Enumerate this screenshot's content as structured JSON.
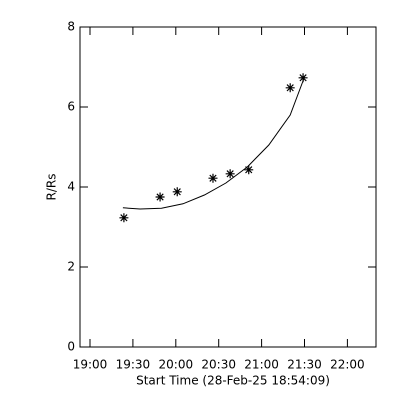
{
  "chart_data": {
    "type": "scatter",
    "xlabel": "Start Time (28-Feb-25 18:54:09)",
    "ylabel": "R/Rs",
    "xlim": [
      1133,
      1340
    ],
    "ylim": [
      0,
      8
    ],
    "xticks": [
      {
        "value": 1140,
        "label": "19:00"
      },
      {
        "value": 1170,
        "label": "19:30"
      },
      {
        "value": 1200,
        "label": "20:00"
      },
      {
        "value": 1230,
        "label": "20:30"
      },
      {
        "value": 1260,
        "label": "21:00"
      },
      {
        "value": 1290,
        "label": "21:30"
      },
      {
        "value": 1320,
        "label": "22:00"
      }
    ],
    "yticks": [
      0,
      2,
      4,
      6,
      8
    ],
    "color": "#000000",
    "x": [
      1163.7,
      1189,
      1201,
      1226,
      1238,
      1251,
      1280,
      1289
    ],
    "values": [
      3.23,
      3.75,
      3.88,
      4.22,
      4.33,
      4.43,
      6.48,
      6.73
    ],
    "fit": {
      "x": [
        1163,
        1175,
        1190,
        1205,
        1220,
        1235,
        1250,
        1265,
        1280,
        1290
      ],
      "values": [
        3.48,
        3.45,
        3.47,
        3.58,
        3.8,
        4.1,
        4.5,
        5.05,
        5.8,
        6.75
      ]
    }
  }
}
